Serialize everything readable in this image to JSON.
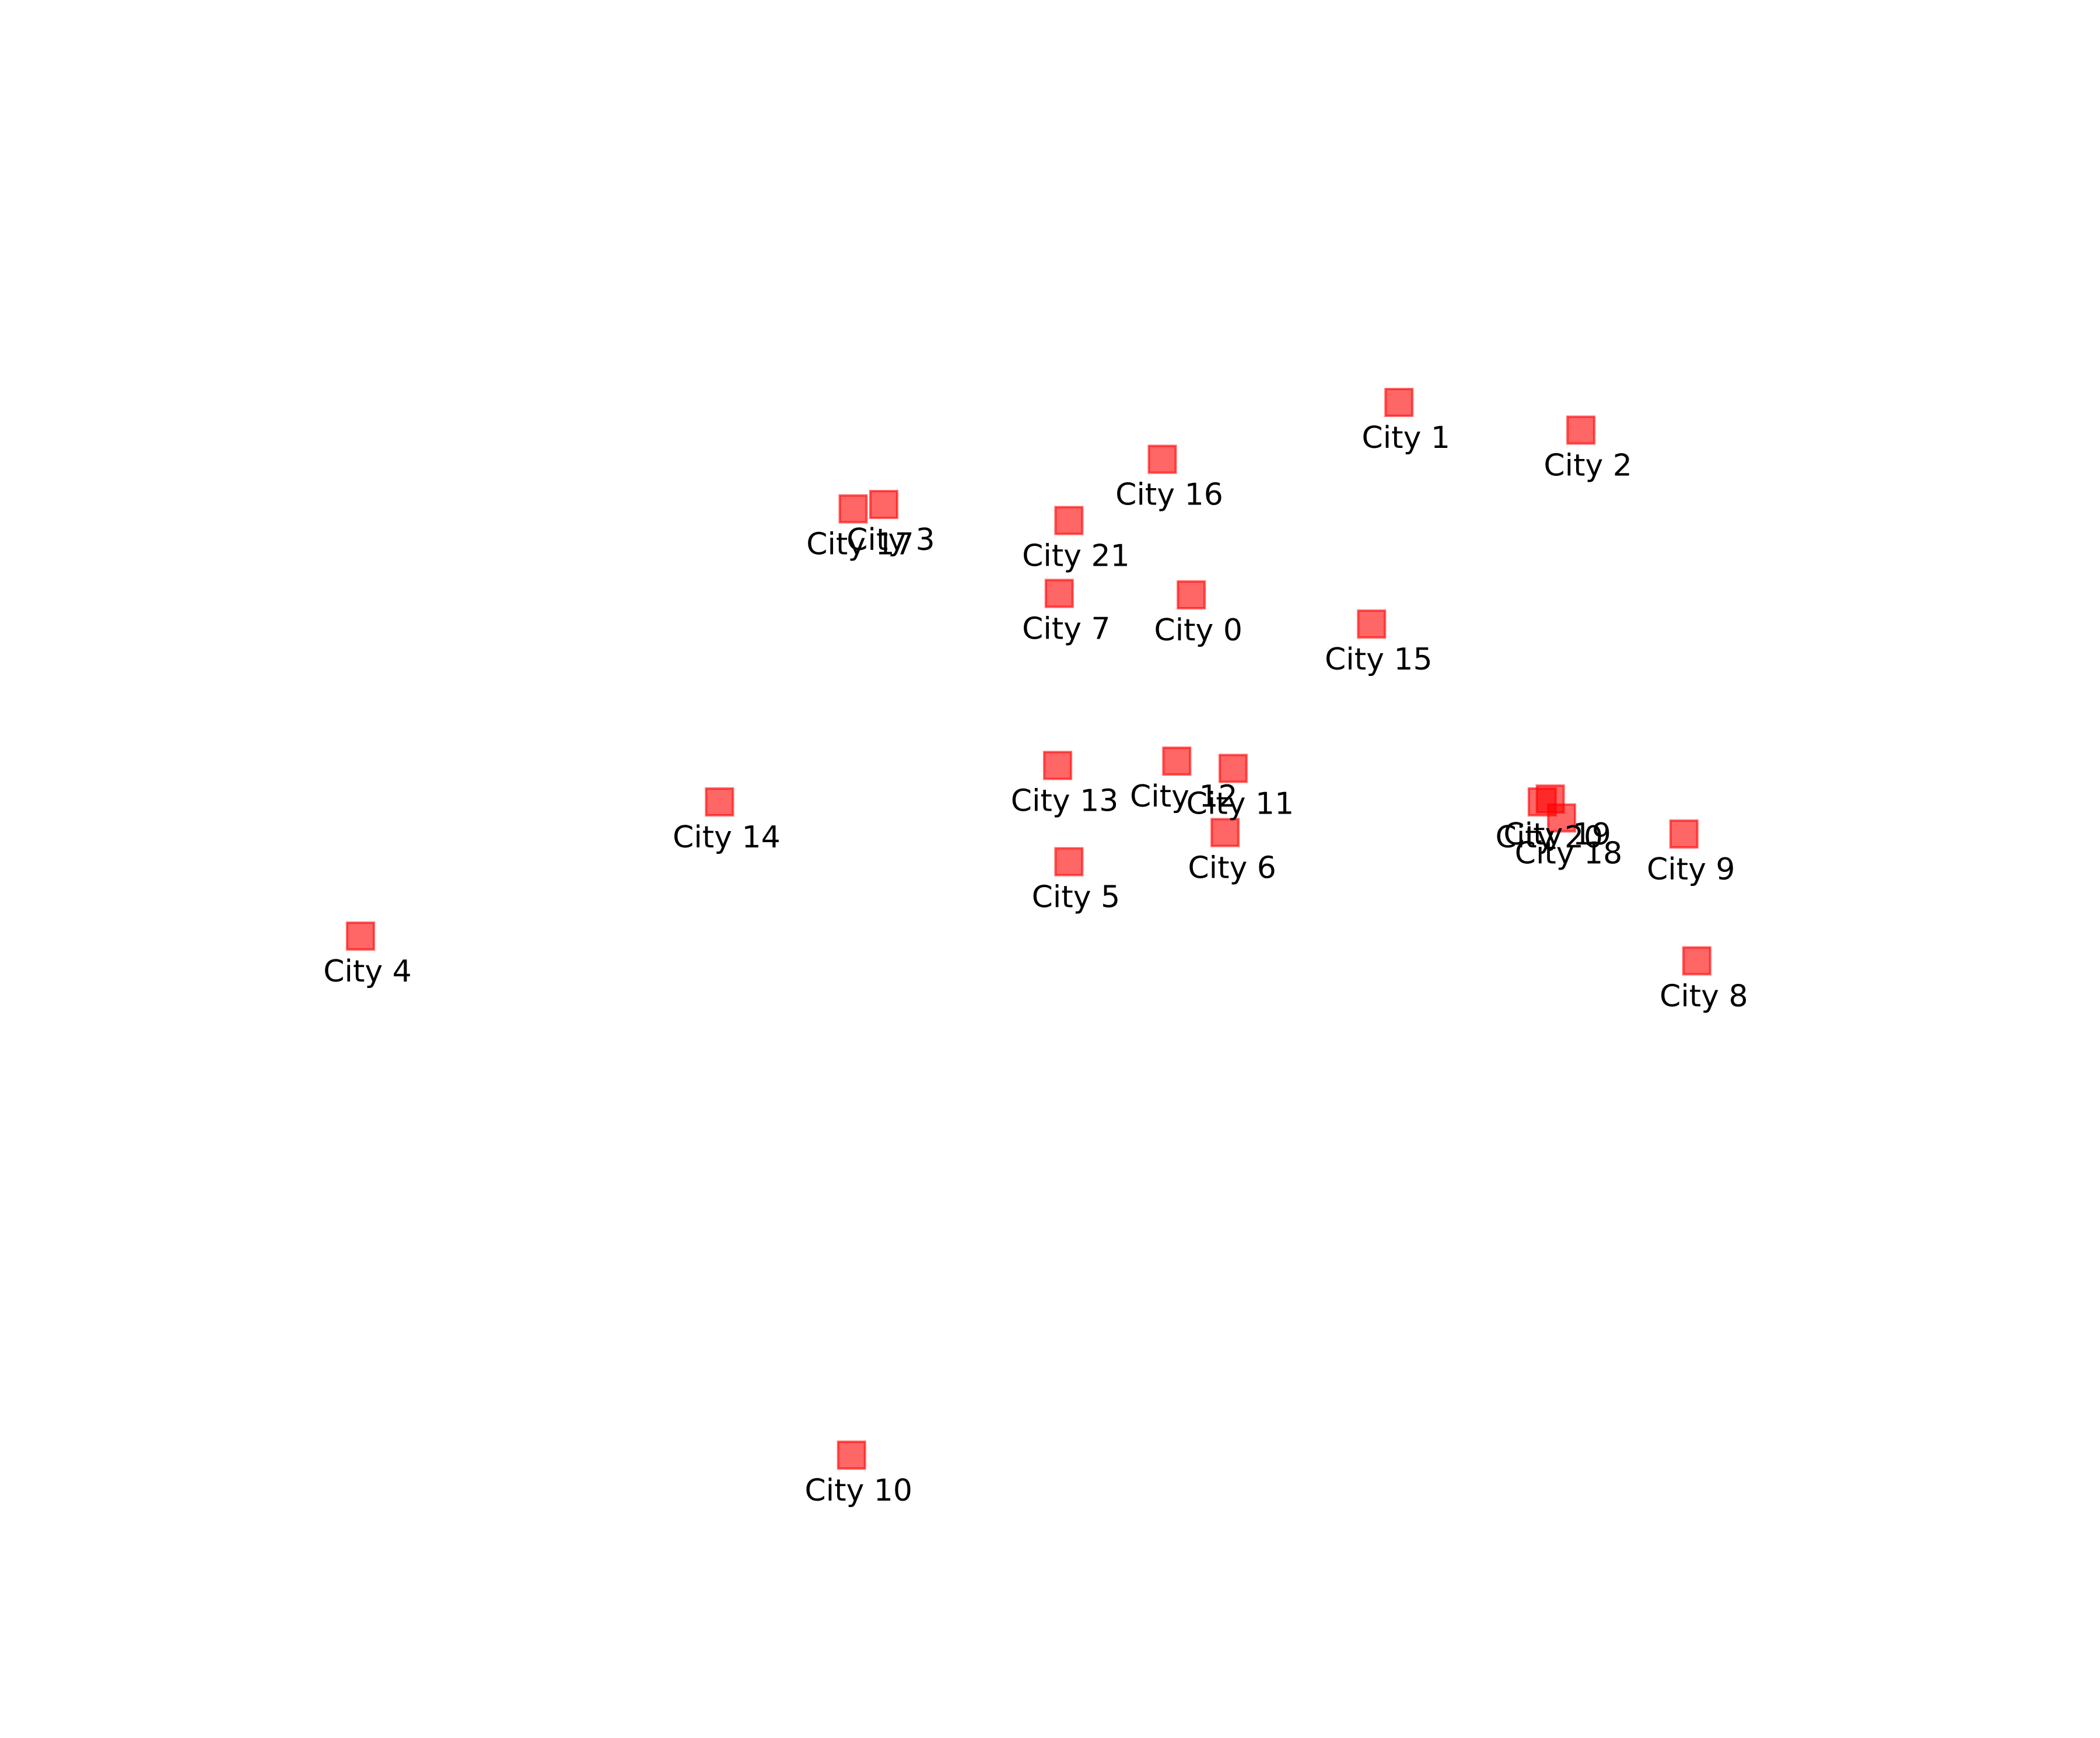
{
  "chart_data": {
    "type": "scatter",
    "title": "",
    "xlabel": "",
    "ylabel": "",
    "grid": false,
    "axes_visible": false,
    "xlim": [
      0,
      100
    ],
    "ylim": [
      0,
      100
    ],
    "marker": "square",
    "marker_color": "#ff0000",
    "points": [
      {
        "label": "City 0",
        "x": 56.6,
        "y": 72.0
      },
      {
        "label": "City 1",
        "x": 69.5,
        "y": 85.2
      },
      {
        "label": "City 2",
        "x": 80.8,
        "y": 83.3
      },
      {
        "label": "City 3",
        "x": 37.5,
        "y": 78.2
      },
      {
        "label": "City 4",
        "x": 5.0,
        "y": 48.6
      },
      {
        "label": "City 5",
        "x": 49.0,
        "y": 53.7
      },
      {
        "label": "City 6",
        "x": 58.7,
        "y": 55.7
      },
      {
        "label": "City 7",
        "x": 48.4,
        "y": 72.1
      },
      {
        "label": "City 8",
        "x": 88.0,
        "y": 46.9
      },
      {
        "label": "City 9",
        "x": 87.2,
        "y": 55.6
      },
      {
        "label": "City 10",
        "x": 35.5,
        "y": 13.0
      },
      {
        "label": "City 11",
        "x": 59.2,
        "y": 60.1
      },
      {
        "label": "City 12",
        "x": 55.7,
        "y": 60.6
      },
      {
        "label": "City 13",
        "x": 48.3,
        "y": 60.3
      },
      {
        "label": "City 14",
        "x": 27.3,
        "y": 57.8
      },
      {
        "label": "City 15",
        "x": 67.8,
        "y": 70.0
      },
      {
        "label": "City 16",
        "x": 54.8,
        "y": 81.3
      },
      {
        "label": "City 17",
        "x": 35.6,
        "y": 77.9
      },
      {
        "label": "City 18",
        "x": 79.6,
        "y": 56.7
      },
      {
        "label": "City 19",
        "x": 78.9,
        "y": 58.0
      },
      {
        "label": "City 20",
        "x": 78.4,
        "y": 57.8
      },
      {
        "label": "City 21",
        "x": 49.0,
        "y": 77.1
      }
    ]
  }
}
